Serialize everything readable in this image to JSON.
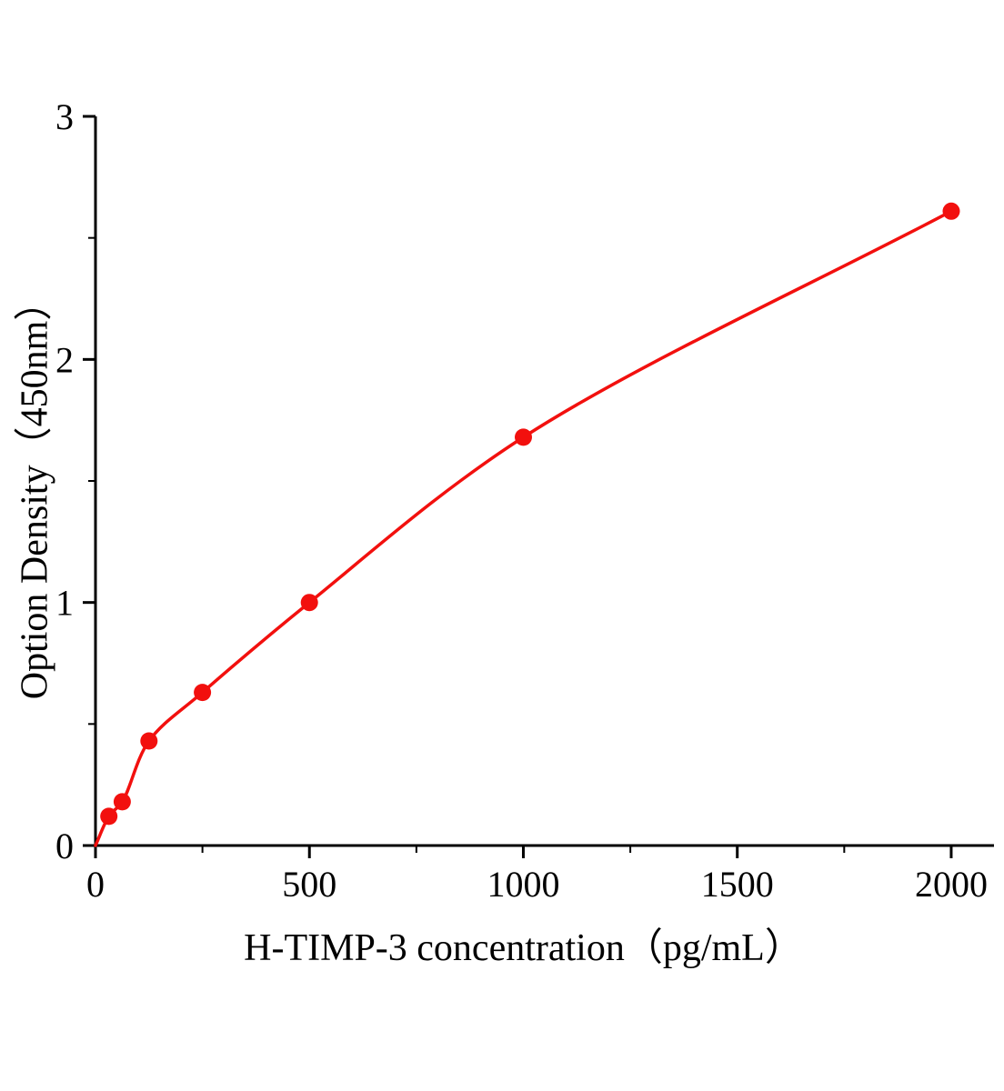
{
  "page": {
    "background": "#ffffff"
  },
  "chart_data": {
    "type": "scatter",
    "title": "",
    "xlabel": "H-TIMP-3 concentration（pg/mL）",
    "ylabel": "Option Density（450nm）",
    "x": [
      31.25,
      62.5,
      125,
      250,
      500,
      1000,
      2000
    ],
    "y": [
      0.12,
      0.18,
      0.43,
      0.63,
      1.0,
      1.68,
      2.61
    ],
    "curve_start": {
      "x": 0,
      "y": 0
    },
    "xlim": [
      0,
      2100
    ],
    "ylim": [
      0,
      3
    ],
    "x_major_ticks": [
      0,
      500,
      1000,
      1500,
      2000
    ],
    "x_minor_ticks": [
      250,
      750,
      1250,
      1750
    ],
    "y_major_ticks": [
      0,
      1,
      2,
      3
    ],
    "y_minor_ticks": [
      0.5,
      1.5,
      2.5
    ],
    "grid": false,
    "legend": "none",
    "line_color": "#f2100e",
    "marker_color": "#f2100e",
    "axis_color": "#000000"
  }
}
